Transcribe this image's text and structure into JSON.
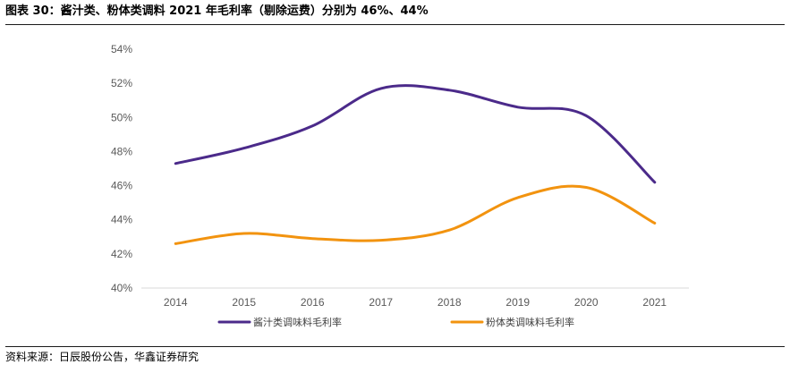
{
  "header": {
    "title": "图表 30：酱汁类、粉体类调料 2021 年毛利率（剔除运费）分别为 46%、44%"
  },
  "footer": {
    "source": "资料来源：日辰股份公告，华鑫证券研究"
  },
  "chart_data": {
    "type": "line",
    "x": [
      "2014",
      "2015",
      "2016",
      "2017",
      "2018",
      "2019",
      "2020",
      "2021"
    ],
    "series": [
      {
        "name": "酱汁类调味料毛利率",
        "values": [
          47.3,
          48.2,
          49.5,
          51.7,
          51.6,
          50.6,
          50.1,
          46.2
        ],
        "color": "#4B2A8A"
      },
      {
        "name": "粉体类调味料毛利率",
        "values": [
          42.6,
          43.2,
          42.9,
          42.8,
          43.4,
          45.3,
          45.9,
          43.8
        ],
        "color": "#F2930F"
      }
    ],
    "yticks": [
      "40%",
      "42%",
      "44%",
      "46%",
      "48%",
      "50%",
      "52%",
      "54%"
    ],
    "ylim": [
      40,
      54
    ],
    "y_unit": "%",
    "grid": false,
    "legend_position": "bottom"
  }
}
